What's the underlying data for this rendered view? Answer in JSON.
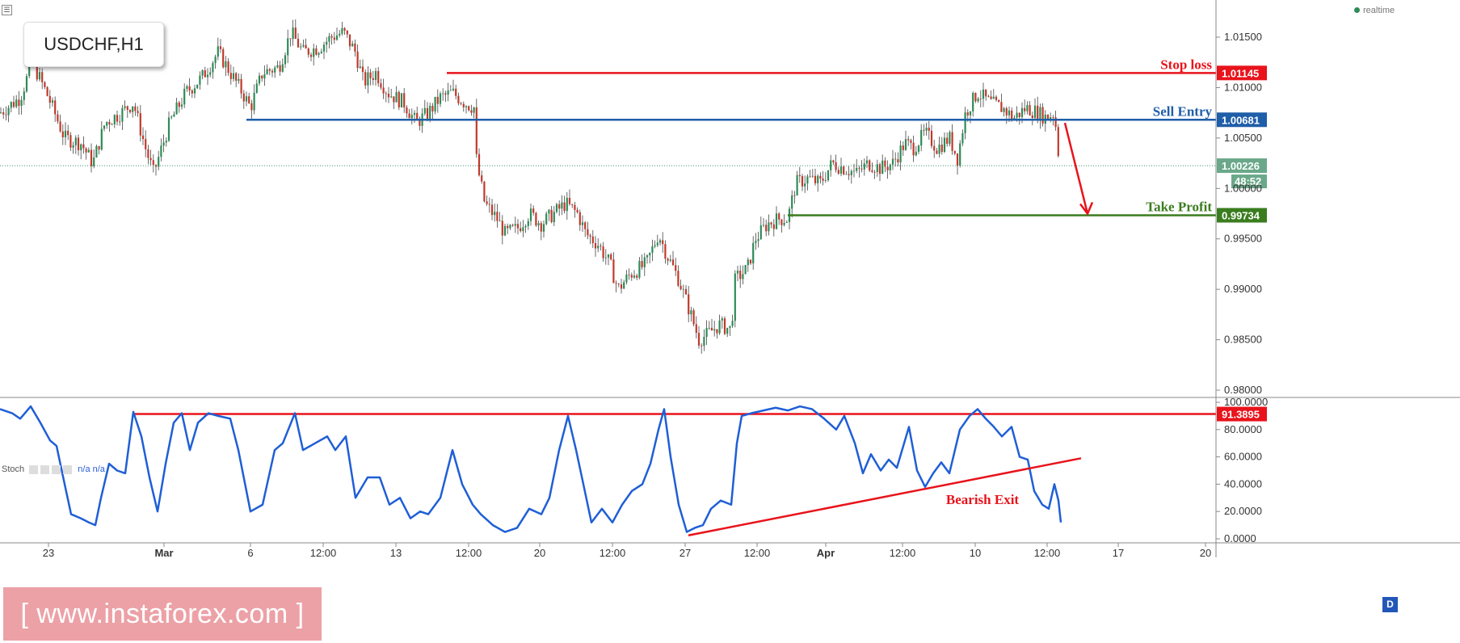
{
  "symbol_label": "USDCHF,H1",
  "realtime_label": "realtime",
  "menu_icon": "menu-icon",
  "stoch_label": "Stoch",
  "stoch_values": "n/a n/a",
  "watermark_text": "[ www.instaforex.com ]",
  "d_badge": "D",
  "colors": {
    "bull": "#2e8b57",
    "bear": "#c0392b",
    "stop": "#e8131b",
    "entry": "#1f5ea8",
    "profit": "#3a7d1f",
    "stoch_line": "#1f5fd6",
    "grid": "#e6e6e6"
  },
  "chart_data": [
    {
      "type": "candlestick",
      "symbol": "USDCHF",
      "timeframe": "H1",
      "ylim": [
        0.98,
        1.018
      ],
      "y_ticks": [
        "1.01500",
        "1.01000",
        "1.00500",
        "1.00000",
        "0.99500",
        "0.99000",
        "0.98500",
        "0.98000"
      ],
      "y_tick_values": [
        1.015,
        1.01,
        1.005,
        1.0,
        0.995,
        0.99,
        0.985,
        0.98
      ],
      "x_ticks": [
        "23",
        "Mar",
        "6",
        "12:00",
        "13",
        "12:00",
        "20",
        "12:00",
        "27",
        "12:00",
        "Apr",
        "12:00",
        "10",
        "12:00",
        "17",
        "20"
      ],
      "price_path": [
        [
          0,
          1.0075
        ],
        [
          25,
          1.009
        ],
        [
          40,
          1.0125
        ],
        [
          60,
          1.009
        ],
        [
          80,
          1.005
        ],
        [
          100,
          1.0045
        ],
        [
          115,
          1.0025
        ],
        [
          130,
          1.0065
        ],
        [
          150,
          1.0075
        ],
        [
          165,
          1.0085
        ],
        [
          180,
          1.004
        ],
        [
          190,
          1.0015
        ],
        [
          210,
          1.0065
        ],
        [
          230,
          1.0095
        ],
        [
          250,
          1.011
        ],
        [
          270,
          1.0135
        ],
        [
          285,
          1.0115
        ],
        [
          300,
          1.0095
        ],
        [
          310,
          1.008
        ],
        [
          325,
          1.0115
        ],
        [
          345,
          1.012
        ],
        [
          360,
          1.0155
        ],
        [
          375,
          1.0135
        ],
        [
          395,
          1.014
        ],
        [
          410,
          1.015
        ],
        [
          425,
          1.0155
        ],
        [
          440,
          1.0135
        ],
        [
          450,
          1.0105
        ],
        [
          465,
          1.0115
        ],
        [
          480,
          1.0095
        ],
        [
          500,
          1.0085
        ],
        [
          515,
          1.0065
        ],
        [
          530,
          1.0075
        ],
        [
          545,
          1.009
        ],
        [
          560,
          1.0095
        ],
        [
          575,
          1.0085
        ],
        [
          587,
          1.008
        ],
        [
          590,
          1.0025
        ],
        [
          600,
          0.9985
        ],
        [
          615,
          0.997
        ],
        [
          625,
          0.9955
        ],
        [
          640,
          0.996
        ],
        [
          655,
          0.9975
        ],
        [
          670,
          0.9965
        ],
        [
          685,
          0.9975
        ],
        [
          700,
          0.9985
        ],
        [
          715,
          0.9975
        ],
        [
          725,
          0.9955
        ],
        [
          740,
          0.9945
        ],
        [
          755,
          0.9925
        ],
        [
          765,
          0.99
        ],
        [
          780,
          0.9915
        ],
        [
          800,
          0.9925
        ],
        [
          815,
          0.9955
        ],
        [
          825,
          0.9935
        ],
        [
          840,
          0.991
        ],
        [
          855,
          0.9875
        ],
        [
          865,
          0.985
        ],
        [
          875,
          0.9855
        ],
        [
          890,
          0.9865
        ],
        [
          905,
          0.986
        ],
        [
          910,
          0.991
        ],
        [
          925,
          0.992
        ],
        [
          935,
          0.995
        ],
        [
          950,
          0.9965
        ],
        [
          965,
          0.997
        ],
        [
          975,
          0.997
        ],
        [
          985,
          1.0005
        ],
        [
          1000,
          1.001
        ],
        [
          1015,
          1.0005
        ],
        [
          1030,
          1.0025
        ],
        [
          1045,
          1.002
        ],
        [
          1060,
          1.0015
        ],
        [
          1075,
          1.0025
        ],
        [
          1090,
          1.002
        ],
        [
          1105,
          1.0025
        ],
        [
          1120,
          1.0045
        ],
        [
          1130,
          1.004
        ],
        [
          1145,
          1.0055
        ],
        [
          1160,
          1.004
        ],
        [
          1175,
          1.005
        ],
        [
          1185,
          1.003
        ],
        [
          1195,
          1.0075
        ],
        [
          1210,
          1.0095
        ],
        [
          1225,
          1.0085
        ],
        [
          1240,
          1.008
        ],
        [
          1255,
          1.007
        ],
        [
          1270,
          1.008
        ],
        [
          1285,
          1.0075
        ],
        [
          1295,
          1.007
        ],
        [
          1305,
          1.0075
        ],
        [
          1310,
          1.0035
        ],
        [
          1313,
          1.00226
        ]
      ],
      "levels": [
        {
          "name": "Stop loss",
          "value": 1.01145,
          "tag": "1.01145",
          "start_index": 553
        },
        {
          "name": "Sell Entry",
          "value": 1.00681,
          "tag": "1.00681",
          "start_index": 305
        },
        {
          "name": "Take Profit",
          "value": 0.99734,
          "tag": "0.99734",
          "start_index": 975
        }
      ],
      "current_price": {
        "value": 1.00226,
        "tag": "1.00226",
        "countdown": "48:52"
      },
      "arrow": {
        "from": [
          1318,
          1.0065
        ],
        "to": [
          1346,
          0.9975
        ]
      }
    },
    {
      "type": "line",
      "indicator": "Stoch",
      "ylim": [
        0,
        100
      ],
      "y_ticks": [
        "100.0000",
        "80.0000",
        "60.0000",
        "40.0000",
        "20.0000",
        "0.0000"
      ],
      "y_tick_values": [
        100,
        80,
        60,
        40,
        20,
        0
      ],
      "overbought": {
        "value": 91.3895,
        "tag": "91.3895",
        "start_index": 165
      },
      "trendline": {
        "from": [
          852,
          2.5
        ],
        "to": [
          1338,
          59
        ]
      },
      "annotation": "Bearish Exit",
      "values": [
        [
          0,
          95
        ],
        [
          15,
          92
        ],
        [
          25,
          88
        ],
        [
          38,
          97
        ],
        [
          50,
          85
        ],
        [
          62,
          72
        ],
        [
          70,
          68
        ],
        [
          80,
          40
        ],
        [
          88,
          18
        ],
        [
          100,
          15
        ],
        [
          110,
          12
        ],
        [
          118,
          10
        ],
        [
          125,
          30
        ],
        [
          135,
          55
        ],
        [
          145,
          50
        ],
        [
          155,
          48
        ],
        [
          165,
          93
        ],
        [
          175,
          75
        ],
        [
          185,
          45
        ],
        [
          195,
          20
        ],
        [
          205,
          55
        ],
        [
          215,
          85
        ],
        [
          225,
          92
        ],
        [
          235,
          65
        ],
        [
          245,
          85
        ],
        [
          258,
          92
        ],
        [
          270,
          90
        ],
        [
          285,
          88
        ],
        [
          295,
          65
        ],
        [
          310,
          20
        ],
        [
          325,
          25
        ],
        [
          340,
          65
        ],
        [
          350,
          70
        ],
        [
          365,
          92
        ],
        [
          375,
          65
        ],
        [
          390,
          70
        ],
        [
          405,
          75
        ],
        [
          415,
          65
        ],
        [
          428,
          75
        ],
        [
          440,
          30
        ],
        [
          455,
          45
        ],
        [
          470,
          45
        ],
        [
          482,
          25
        ],
        [
          495,
          30
        ],
        [
          508,
          15
        ],
        [
          520,
          20
        ],
        [
          530,
          18
        ],
        [
          545,
          30
        ],
        [
          560,
          65
        ],
        [
          572,
          40
        ],
        [
          585,
          25
        ],
        [
          595,
          18
        ],
        [
          610,
          10
        ],
        [
          625,
          5
        ],
        [
          640,
          8
        ],
        [
          655,
          22
        ],
        [
          670,
          18
        ],
        [
          680,
          30
        ],
        [
          692,
          65
        ],
        [
          703,
          90
        ],
        [
          713,
          65
        ],
        [
          722,
          40
        ],
        [
          732,
          12
        ],
        [
          745,
          22
        ],
        [
          758,
          12
        ],
        [
          770,
          25
        ],
        [
          782,
          35
        ],
        [
          795,
          40
        ],
        [
          805,
          55
        ],
        [
          815,
          80
        ],
        [
          822,
          95
        ],
        [
          830,
          60
        ],
        [
          840,
          25
        ],
        [
          850,
          5
        ],
        [
          860,
          8
        ],
        [
          870,
          10
        ],
        [
          880,
          22
        ],
        [
          892,
          28
        ],
        [
          905,
          25
        ],
        [
          912,
          70
        ],
        [
          918,
          90
        ],
        [
          930,
          92
        ],
        [
          945,
          94
        ],
        [
          960,
          96
        ],
        [
          975,
          94
        ],
        [
          990,
          97
        ],
        [
          1005,
          95
        ],
        [
          1020,
          88
        ],
        [
          1035,
          80
        ],
        [
          1045,
          90
        ],
        [
          1058,
          70
        ],
        [
          1068,
          48
        ],
        [
          1078,
          62
        ],
        [
          1090,
          50
        ],
        [
          1100,
          58
        ],
        [
          1110,
          52
        ],
        [
          1125,
          82
        ],
        [
          1135,
          50
        ],
        [
          1145,
          38
        ],
        [
          1155,
          48
        ],
        [
          1165,
          56
        ],
        [
          1175,
          48
        ],
        [
          1188,
          80
        ],
        [
          1200,
          90
        ],
        [
          1210,
          95
        ],
        [
          1220,
          88
        ],
        [
          1230,
          82
        ],
        [
          1240,
          75
        ],
        [
          1252,
          82
        ],
        [
          1262,
          60
        ],
        [
          1272,
          58
        ],
        [
          1280,
          35
        ],
        [
          1290,
          25
        ],
        [
          1298,
          22
        ],
        [
          1305,
          40
        ],
        [
          1310,
          28
        ],
        [
          1313,
          12
        ]
      ]
    }
  ]
}
